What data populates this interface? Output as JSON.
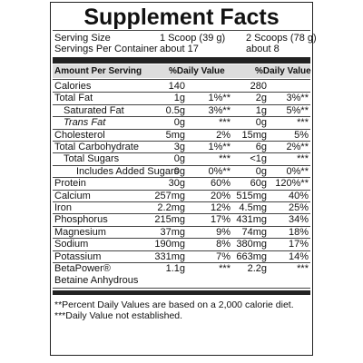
{
  "header": {
    "title": "Supplement Facts"
  },
  "serving": [
    [
      "Serving Size",
      "1 Scoop (39 g)",
      "2 Scoops (78 g)"
    ],
    [
      "Servings Per Container",
      "about 17",
      "about 8"
    ]
  ],
  "table": {
    "columns": [
      "Amount Per Serving",
      "%Daily Value",
      "%Daily Value"
    ],
    "rows": [
      [
        "Calories",
        "140",
        "",
        "280",
        ""
      ],
      [
        "Total Fat",
        "1g",
        "1%**",
        "2g",
        "3%**"
      ],
      [
        "Saturated Fat",
        "0.5g",
        "3%**",
        "1g",
        "5%**"
      ],
      [
        "Trans Fat",
        "0g",
        "***",
        "0g",
        "***"
      ],
      [
        "Cholesterol",
        "5mg",
        "2%",
        "15mg",
        "5%"
      ],
      [
        "Total Carbohydrate",
        "3g",
        "1%**",
        "6g",
        "2%**"
      ],
      [
        "Total Sugars",
        "0g",
        "***",
        "<1g",
        "***"
      ],
      [
        "Includes Added Sugars",
        "0g",
        "0%**",
        "0g",
        "0%**"
      ],
      [
        "Protein",
        "30g",
        "60%",
        "60g",
        "120%**"
      ],
      [
        "Calcium",
        "257mg",
        "20%",
        "515mg",
        "40%"
      ],
      [
        "Iron",
        "2.2mg",
        "12%",
        "4.5mg",
        "25%"
      ],
      [
        "Phosphorus",
        "215mg",
        "17%",
        "431mg",
        "34%"
      ],
      [
        "Magnesium",
        "37mg",
        "9%",
        "74mg",
        "18%"
      ],
      [
        "Sodium",
        "190mg",
        "8%",
        "380mg",
        "17%"
      ],
      [
        "Potassium",
        "331mg",
        "7%",
        "663mg",
        "14%"
      ],
      [
        "BetaPower®\nBetaine Anhydrous",
        "1.1g",
        "***",
        "2.2g",
        "***"
      ]
    ]
  },
  "footnotes": [
    "**Percent Daily Values are based on a 2,000 calorie diet.",
    "***Daily Value not established."
  ]
}
